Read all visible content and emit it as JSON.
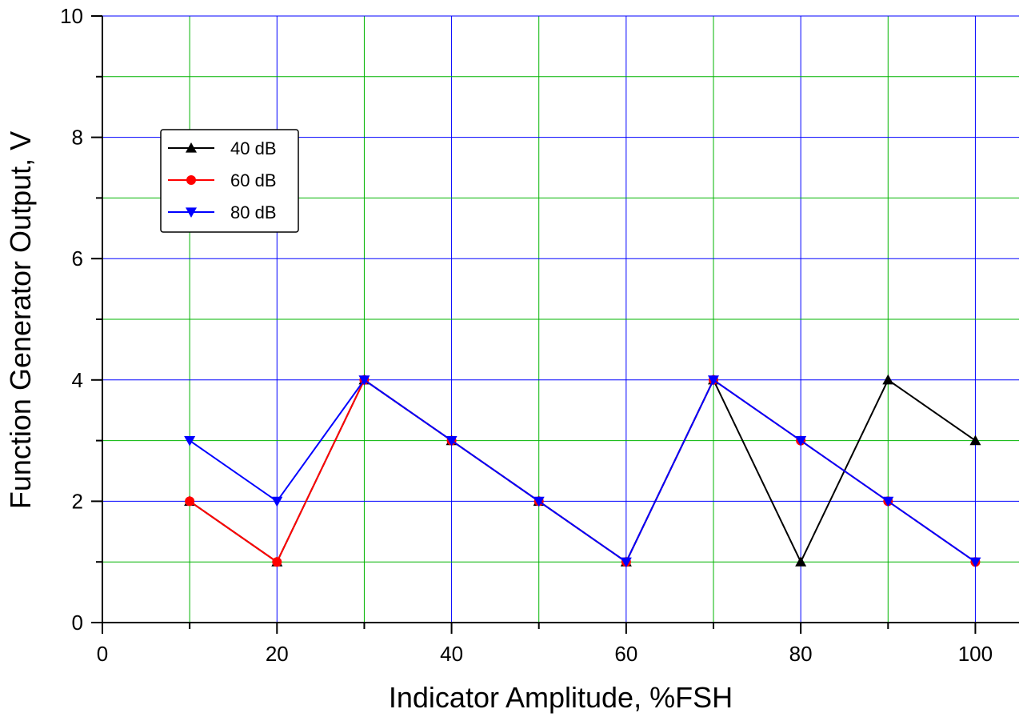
{
  "chart_data": {
    "type": "line",
    "xlabel": "Indicator Amplitude, %FSH",
    "ylabel": "Function Generator Output, V",
    "xlim": [
      0,
      105
    ],
    "ylim": [
      0,
      10
    ],
    "x_ticks": [
      0,
      20,
      40,
      60,
      80,
      100
    ],
    "y_ticks": [
      0,
      2,
      4,
      6,
      8,
      10
    ],
    "grid": true,
    "grid_colors": {
      "major": "#0000ff",
      "minor": "#00b400"
    },
    "legend_position": "upper-left",
    "x": [
      10,
      20,
      30,
      40,
      50,
      60,
      70,
      80,
      90,
      100
    ],
    "series": [
      {
        "name": "40 dB",
        "color": "#000000",
        "marker": "triangle-up",
        "values": [
          2,
          1,
          4,
          3,
          2,
          1,
          4,
          1,
          4,
          3
        ]
      },
      {
        "name": "60 dB",
        "color": "#ff0000",
        "marker": "circle",
        "values": [
          2,
          1,
          4,
          3,
          2,
          1,
          4,
          3,
          2,
          1
        ]
      },
      {
        "name": "80 dB",
        "color": "#0000ff",
        "marker": "triangle-down",
        "values": [
          3,
          2,
          4,
          3,
          2,
          1,
          4,
          3,
          2,
          1
        ]
      }
    ]
  }
}
